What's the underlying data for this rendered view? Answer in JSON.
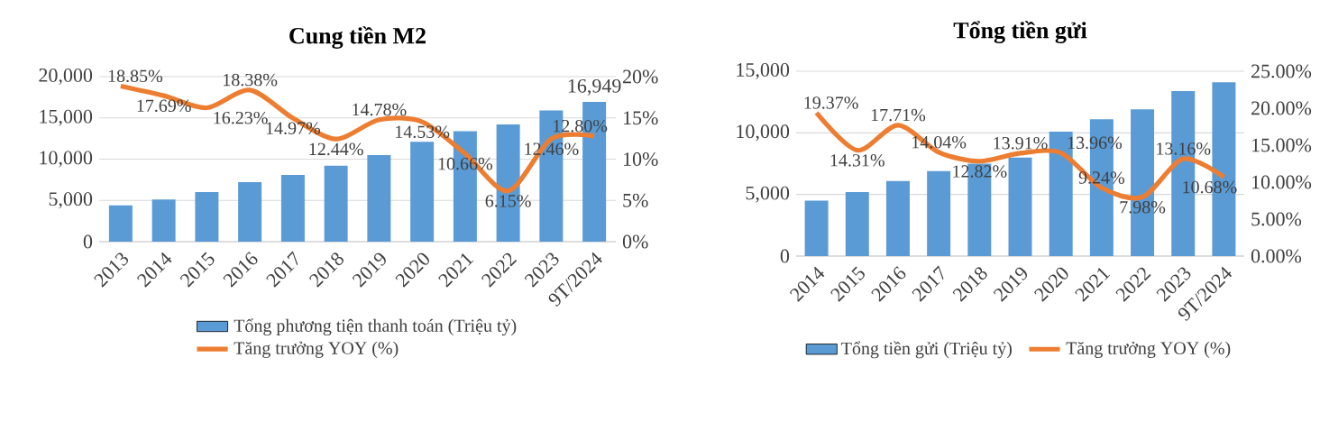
{
  "chart_data": [
    {
      "type": "bar",
      "title": "Cung tiền M2",
      "categories": [
        "2013",
        "2014",
        "2015",
        "2016",
        "2017",
        "2018",
        "2019",
        "2020",
        "2021",
        "2022",
        "2023",
        "9T/2024"
      ],
      "series": [
        {
          "name": "Tổng phương tiện thanh toán (Triệu tỷ)",
          "color": "#5b9bd5",
          "values": [
            4400,
            5100,
            6000,
            7200,
            8100,
            9200,
            10500,
            12100,
            13400,
            14200,
            15900,
            16949
          ],
          "value_labels": [
            null,
            null,
            null,
            null,
            null,
            null,
            null,
            null,
            null,
            null,
            null,
            "16,949"
          ]
        },
        {
          "name": "Tăng trưởng YOY (%)",
          "type": "line",
          "axis": "y2",
          "color": "#ed7d31",
          "values": [
            18.85,
            17.69,
            16.23,
            18.38,
            14.97,
            12.44,
            14.78,
            14.53,
            10.66,
            6.15,
            12.46,
            12.8
          ],
          "value_labels": [
            "18.85%",
            "17.69%",
            "16.23%",
            "18.38%",
            "14.97%",
            "12.44%",
            "14.78%",
            "14.53%",
            "10.66%",
            "6.15%",
            "12.46%",
            "12.80%"
          ]
        }
      ],
      "ylim": [
        0,
        20000
      ],
      "yticks": [
        {
          "value": 0,
          "label": "0"
        },
        {
          "value": 5000,
          "label": "5,000"
        },
        {
          "value": 10000,
          "label": "10,000"
        },
        {
          "value": 15000,
          "label": "15,000"
        },
        {
          "value": 20000,
          "label": "20,000"
        }
      ],
      "y2lim": [
        0,
        20
      ],
      "y2ticks": [
        {
          "value": 0,
          "label": "0%"
        },
        {
          "value": 5,
          "label": "5%"
        },
        {
          "value": 10,
          "label": "10%"
        },
        {
          "value": 15,
          "label": "15%"
        },
        {
          "value": 20,
          "label": "20%"
        }
      ],
      "grid": "y",
      "legend": "bottom"
    },
    {
      "type": "bar",
      "title": "Tổng tiền gửi",
      "categories": [
        "2014",
        "2015",
        "2016",
        "2017",
        "2018",
        "2019",
        "2020",
        "2021",
        "2022",
        "2023",
        "9T/2024"
      ],
      "series": [
        {
          "name": "Tổng tiền gửi (Triệu tỷ)",
          "color": "#5b9bd5",
          "values": [
            4500,
            5200,
            6100,
            6900,
            7500,
            8000,
            10100,
            11100,
            11900,
            13400,
            14100
          ]
        },
        {
          "name": "Tăng trưởng YOY (%)",
          "type": "line",
          "axis": "y2",
          "color": "#ed7d31",
          "values": [
            19.37,
            14.31,
            17.71,
            14.04,
            12.82,
            13.91,
            13.96,
            9.24,
            7.98,
            13.16,
            10.68
          ],
          "value_labels": [
            "19.37%",
            "14.31%",
            "17.71%",
            "14.04%",
            "12.82%",
            "13.91%",
            "13.96%",
            "9.24%",
            "7.98%",
            "13.16%",
            "10.68%"
          ]
        }
      ],
      "ylim": [
        0,
        15000
      ],
      "yticks": [
        {
          "value": 0,
          "label": "0"
        },
        {
          "value": 5000,
          "label": "5,000"
        },
        {
          "value": 10000,
          "label": "10,000"
        },
        {
          "value": 15000,
          "label": "15,000"
        }
      ],
      "y2lim": [
        0,
        25
      ],
      "y2ticks": [
        {
          "value": 0,
          "label": "0.00%"
        },
        {
          "value": 5,
          "label": "5.00%"
        },
        {
          "value": 10,
          "label": "10.00%"
        },
        {
          "value": 15,
          "label": "15.00%"
        },
        {
          "value": 20,
          "label": "20.00%"
        },
        {
          "value": 25,
          "label": "25.00%"
        }
      ],
      "grid": "y",
      "legend": "bottom"
    }
  ]
}
